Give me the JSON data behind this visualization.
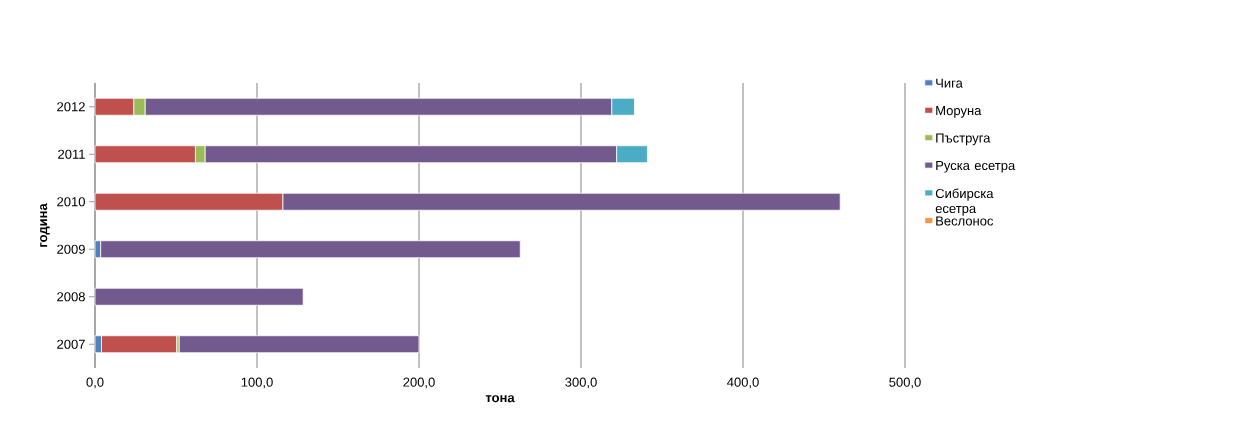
{
  "chart_data": {
    "type": "bar",
    "orientation": "horizontal",
    "stacked": true,
    "categories": [
      "2012",
      "2011",
      "2010",
      "2009",
      "2008",
      "2007"
    ],
    "xlabel": "тона",
    "ylabel": "година",
    "xlim": [
      0,
      500
    ],
    "xticks": [
      {
        "value": 0,
        "label": "0,0"
      },
      {
        "value": 100,
        "label": "100,0"
      },
      {
        "value": 200,
        "label": "200,0"
      },
      {
        "value": 300,
        "label": "300,0"
      },
      {
        "value": 400,
        "label": "400,0"
      },
      {
        "value": 500,
        "label": "500,0"
      }
    ],
    "grid": "x",
    "legend": "right",
    "series": [
      {
        "name": "Чига",
        "color": "#4f81bd",
        "values": [
          0,
          0,
          0,
          3.5,
          0,
          4
        ]
      },
      {
        "name": "Моруна",
        "color": "#c0504d",
        "values": [
          24,
          62,
          116,
          0,
          0,
          46.5
        ]
      },
      {
        "name": "Пъструга",
        "color": "#9bbb59",
        "values": [
          7,
          6,
          0,
          0,
          0,
          1.5
        ]
      },
      {
        "name": "Руска есетра",
        "color": "#725a8f",
        "values": [
          288,
          254,
          344,
          259,
          128.5,
          148
        ]
      },
      {
        "name": "Сибирска есетра",
        "color": "#4bacc6",
        "values": [
          14,
          19,
          0,
          0,
          0,
          0
        ]
      },
      {
        "name": "Веслонос",
        "color": "#f79646",
        "values": [
          0,
          0,
          0,
          0,
          0,
          0
        ]
      }
    ]
  }
}
